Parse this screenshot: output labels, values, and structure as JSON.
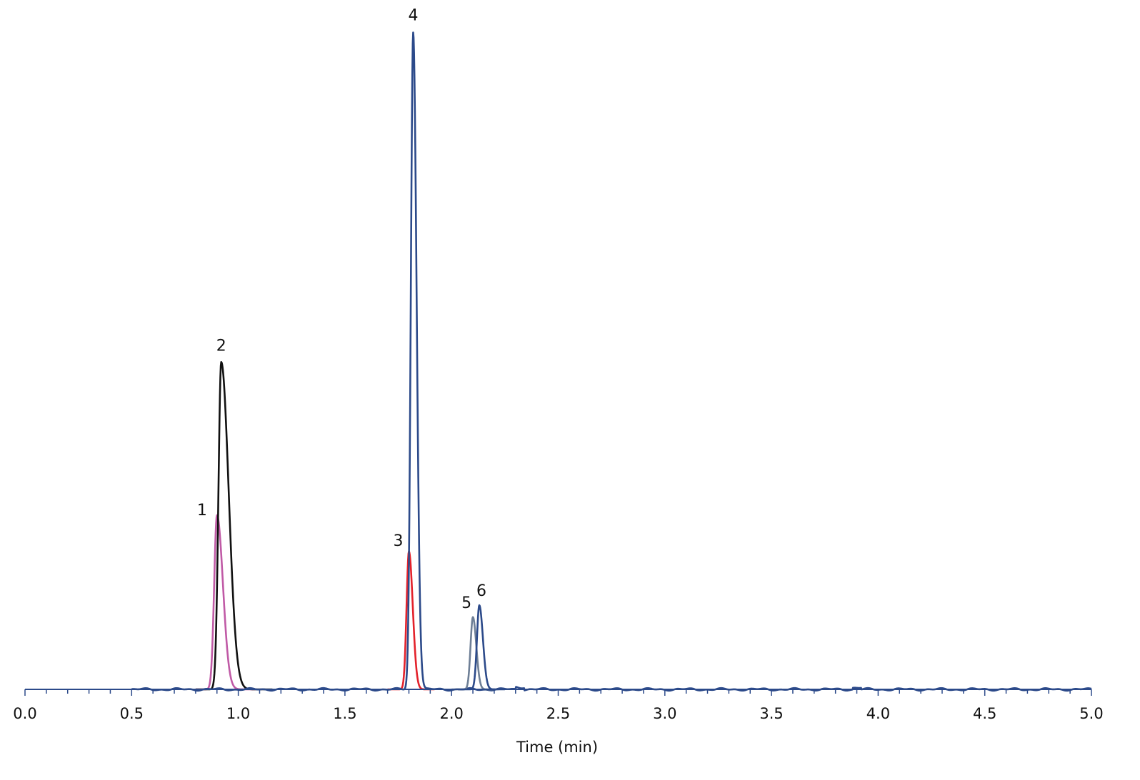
{
  "chart_data": {
    "type": "line",
    "title": "",
    "xlabel": "Time (min)",
    "ylabel": "",
    "xlim": [
      0.0,
      5.0
    ],
    "ylim": [
      0,
      100
    ],
    "grid": false,
    "x_ticks": [
      "0.0",
      "0.5",
      "1.0",
      "1.5",
      "2.0",
      "2.5",
      "3.0",
      "3.5",
      "4.0",
      "4.5",
      "5.0"
    ],
    "x_minor_step": 0.1,
    "series": [
      {
        "color": "#c05aa6",
        "peak_rt": 0.9,
        "peak_height": 26.5,
        "sigma_left": 0.013,
        "sigma_right": 0.028,
        "start": 0.8,
        "end": 1.08
      },
      {
        "color": "#111111",
        "peak_rt": 0.92,
        "peak_height": 49.8,
        "sigma_left": 0.013,
        "sigma_right": 0.035,
        "start": 0.8,
        "end": 1.16
      },
      {
        "color": "#e3222b",
        "peak_rt": 1.8,
        "peak_height": 21.0,
        "sigma_left": 0.011,
        "sigma_right": 0.018,
        "start": 1.7,
        "end": 1.92
      },
      {
        "color": "#2c4a8a",
        "peak_rt": 1.82,
        "peak_height": 100.0,
        "sigma_left": 0.011,
        "sigma_right": 0.016,
        "start": 0.5,
        "end": 5.0,
        "baseline": true
      },
      {
        "color": "#6e7f96",
        "peak_rt": 2.1,
        "peak_height": 11.0,
        "sigma_left": 0.011,
        "sigma_right": 0.016,
        "start": 2.0,
        "end": 2.22
      },
      {
        "color": "#2c4a8a",
        "peak_rt": 2.13,
        "peak_height": 12.8,
        "sigma_left": 0.011,
        "sigma_right": 0.017,
        "start": 2.03,
        "end": 2.25
      }
    ],
    "annotations": [
      {
        "label": "1",
        "x": 0.83,
        "y": 26.5
      },
      {
        "label": "2",
        "x": 0.92,
        "y": 51.5
      },
      {
        "label": "3",
        "x": 1.75,
        "y": 21.8
      },
      {
        "label": "4",
        "x": 1.82,
        "y": 101.8
      },
      {
        "label": "5",
        "x": 2.07,
        "y": 12.4
      },
      {
        "label": "6",
        "x": 2.14,
        "y": 14.2
      }
    ]
  }
}
